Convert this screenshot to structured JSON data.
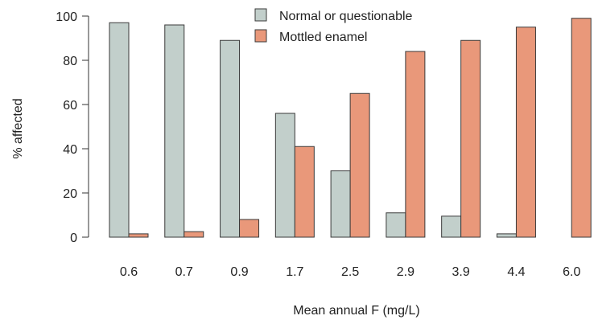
{
  "chart_data": {
    "type": "bar",
    "categories": [
      "0.6",
      "0.7",
      "0.9",
      "1.7",
      "2.5",
      "2.9",
      "3.9",
      "4.4",
      "6.0"
    ],
    "series": [
      {
        "name": "Normal or questionable",
        "color": "#c2cfcb",
        "values": [
          97,
          96,
          89,
          56,
          30,
          11,
          9.5,
          1.5,
          0
        ]
      },
      {
        "name": "Mottled enamel",
        "color": "#e9987a",
        "values": [
          1.5,
          2.5,
          8,
          41,
          65,
          84,
          89,
          95,
          99
        ]
      }
    ],
    "xlabel": "Mean annual F (mg/L)",
    "ylabel": "% affected",
    "ylim": [
      0,
      100
    ],
    "yticks": [
      0,
      20,
      40,
      60,
      80,
      100
    ],
    "legend_position": "top-center",
    "grid": false
  }
}
